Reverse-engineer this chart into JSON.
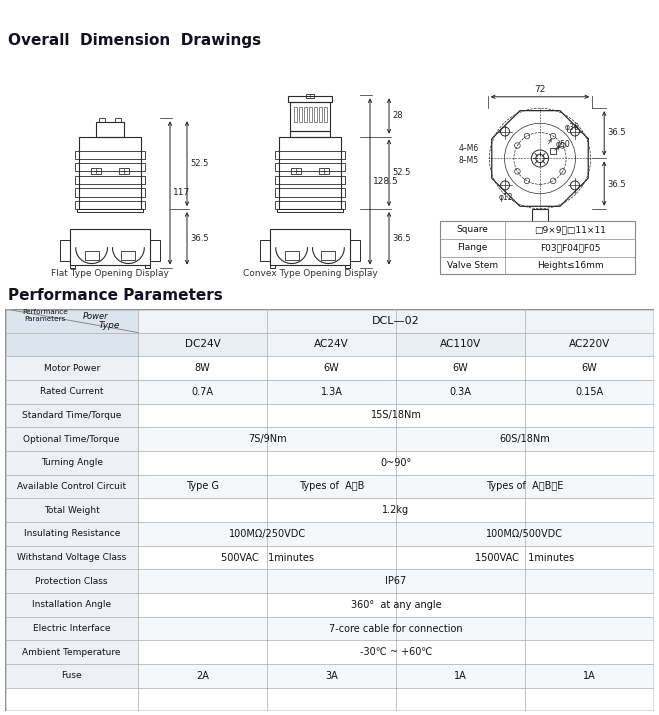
{
  "title_top": "Overall  Dimension  Drawings",
  "title_bottom": "Performance Parameters",
  "header_bg": "#b0c4d0",
  "drawing_bg": "#f0f4f7",
  "table_bg": "#ffffff",
  "lc": "#2a2a2a",
  "dim_color": "#222222",
  "flat_label": "Flat Type Opening Display",
  "convex_label": "Convex Type Opening Display",
  "spec_rows": [
    [
      "Square",
      "□9×9、□11×11"
    ],
    [
      "Flange",
      "F03、F04、F05"
    ],
    [
      "Valve Stem",
      "Height≤16mm"
    ]
  ],
  "perf_rows": [
    [
      "Motor Power",
      "8W",
      "6W",
      "6W",
      "6W"
    ],
    [
      "Rated Current",
      "0.7A",
      "1.3A",
      "0.3A",
      "0.15A"
    ],
    [
      "Standard Time/Torque",
      "15S/18Nm",
      "",
      "",
      ""
    ],
    [
      "Optional Time/Torque",
      "7S/9Nm",
      "60S/18Nm",
      "",
      ""
    ],
    [
      "Turning Angle",
      "0~90°",
      "",
      "",
      ""
    ],
    [
      "Available Control Circuit",
      "Type G",
      "Types of  A、B",
      "Types of  A、B、E",
      ""
    ],
    [
      "Total Weight",
      "1.2kg",
      "",
      "",
      ""
    ],
    [
      "Insulating Resistance",
      "100MΩ/250VDC",
      "",
      "100MΩ/500VDC",
      ""
    ],
    [
      "Withstand Voltage Class",
      "500VAC   1minutes",
      "",
      "1500VAC   1minutes",
      ""
    ],
    [
      "Protection Class",
      "IP67",
      "",
      "",
      ""
    ],
    [
      "Installation Angle",
      "360°  at any angle",
      "",
      "",
      ""
    ],
    [
      "Electric Interface",
      "7-core cable for connection",
      "",
      "",
      ""
    ],
    [
      "Ambient Temperature",
      "-30℃ ~ +60℃",
      "",
      "",
      ""
    ],
    [
      "Fuse",
      "2A",
      "3A",
      "1A",
      "1A"
    ]
  ],
  "col_spans": [
    [
      1,
      1,
      2,
      2,
      3,
      3,
      4,
      4
    ],
    [
      1,
      1,
      2,
      2,
      3,
      3,
      4,
      4
    ],
    [
      1,
      4,
      0,
      0,
      0,
      0,
      0,
      0
    ],
    [
      1,
      2,
      3,
      4,
      0,
      0,
      0,
      0
    ],
    [
      1,
      4,
      0,
      0,
      0,
      0,
      0,
      0
    ],
    [
      1,
      1,
      2,
      2,
      3,
      4,
      0,
      0
    ],
    [
      1,
      4,
      0,
      0,
      0,
      0,
      0,
      0
    ],
    [
      1,
      2,
      3,
      4,
      0,
      0,
      0,
      0
    ],
    [
      1,
      2,
      3,
      4,
      0,
      0,
      0,
      0
    ],
    [
      1,
      4,
      0,
      0,
      0,
      0,
      0,
      0
    ],
    [
      1,
      4,
      0,
      0,
      0,
      0,
      0,
      0
    ],
    [
      1,
      4,
      0,
      0,
      0,
      0,
      0,
      0
    ],
    [
      1,
      4,
      0,
      0,
      0,
      0,
      0,
      0
    ],
    [
      1,
      1,
      2,
      2,
      3,
      3,
      4,
      4
    ]
  ]
}
